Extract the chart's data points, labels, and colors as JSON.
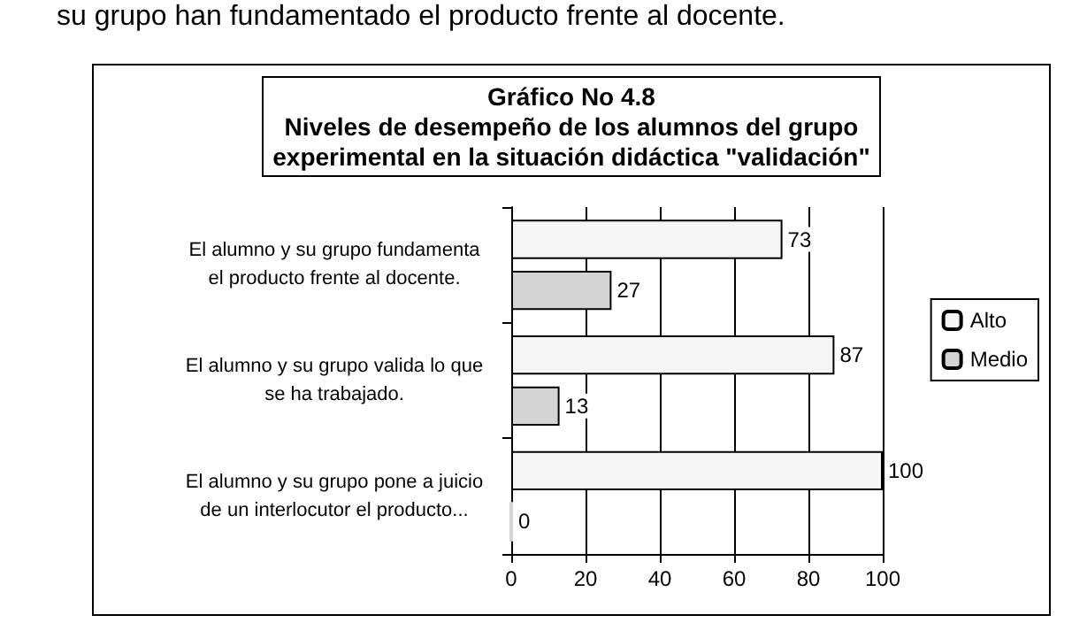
{
  "chart_data": {
    "type": "bar",
    "orientation": "horizontal",
    "title": "Gráfico No 4.8\nNiveles de desempeño de los alumnos del grupo\nexperimental en la situación didáctica \"validación\"",
    "annotations": [
      "su grupo han fundamentado el producto frente al docente."
    ],
    "categories": [
      "El alumno y su grupo fundamenta\nel producto frente al docente.",
      "El alumno y su grupo valida lo que\nse ha trabajado.",
      "El alumno y su grupo pone a juicio\nde un interlocutor el producto..."
    ],
    "series": [
      {
        "name": "Alto",
        "color": "#f5f5f5",
        "values": [
          73,
          87,
          100
        ]
      },
      {
        "name": "Medio",
        "color": "#d4d4d4",
        "values": [
          27,
          13,
          0
        ]
      }
    ],
    "xlim": [
      0,
      100
    ],
    "xticks": [
      0,
      20,
      40,
      60,
      80,
      100
    ],
    "grid": "x",
    "legend": "right",
    "data_labels": true
  }
}
